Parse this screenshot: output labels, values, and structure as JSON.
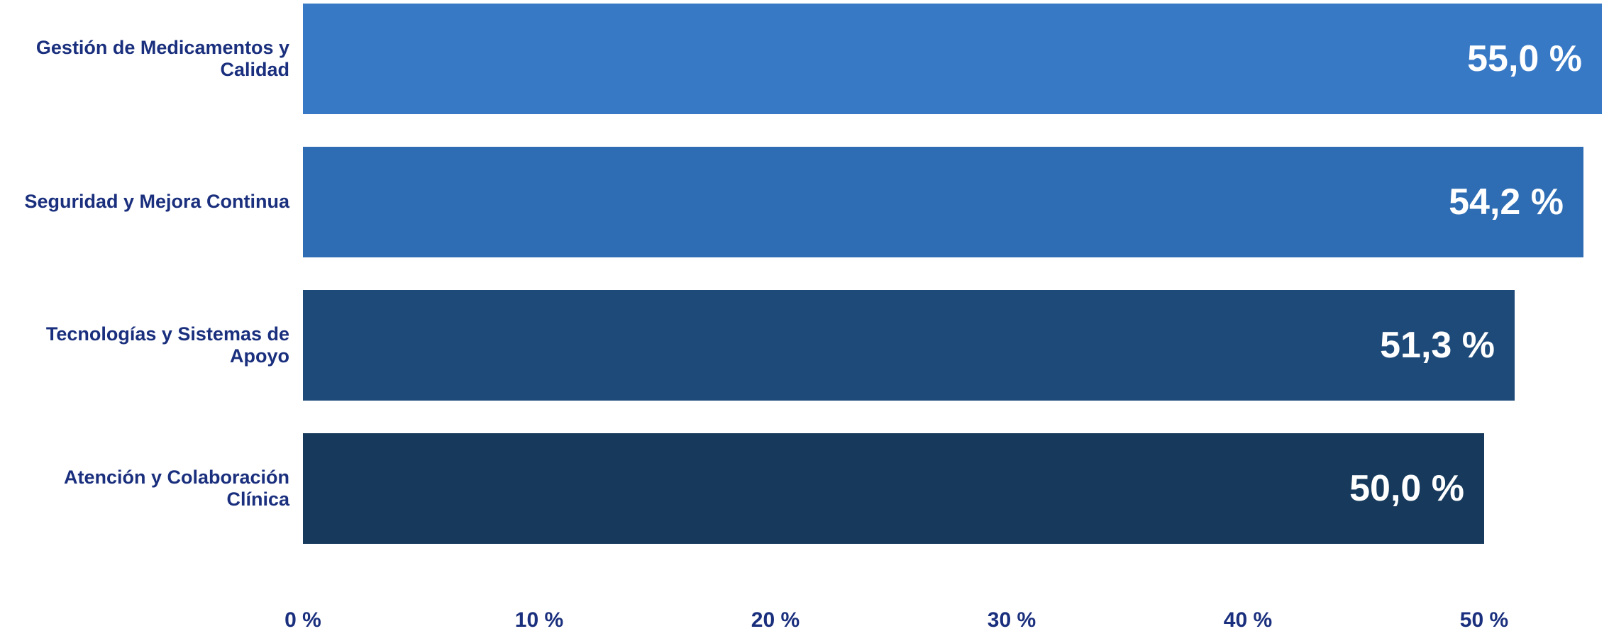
{
  "chart_data": {
    "type": "bar",
    "orientation": "horizontal",
    "title": "",
    "xlabel": "",
    "ylabel": "",
    "categories": [
      "Gestión de Medicamentos y Calidad",
      "Seguridad y Mejora Continua",
      "Tecnologías y Sistemas de Apoyo",
      "Atención y Colaboración Clínica"
    ],
    "values": [
      55.0,
      54.2,
      51.3,
      50.0
    ],
    "value_labels": [
      "55,0 %",
      "54,2 %",
      "51,3 %",
      "50,0 %"
    ],
    "bar_colors": [
      "#3879C6",
      "#2E6DB4",
      "#1E4A79",
      "#16395C"
    ],
    "x_ticks": [
      {
        "label": "0 %",
        "pct": 0
      },
      {
        "label": "10 %",
        "pct": 10
      },
      {
        "label": "20 %",
        "pct": 20
      },
      {
        "label": "30 %",
        "pct": 30
      },
      {
        "label": "40 %",
        "pct": 40
      },
      {
        "label": "50 %",
        "pct": 50
      }
    ],
    "xlim": [
      0,
      55.3
    ],
    "grid": false,
    "legend": false
  },
  "style": {
    "category_label_color": "#1A2F7D",
    "tick_label_color": "#1A2F7D",
    "value_label_color": "#FFFFFF",
    "background_color": "#FFFFFF"
  }
}
